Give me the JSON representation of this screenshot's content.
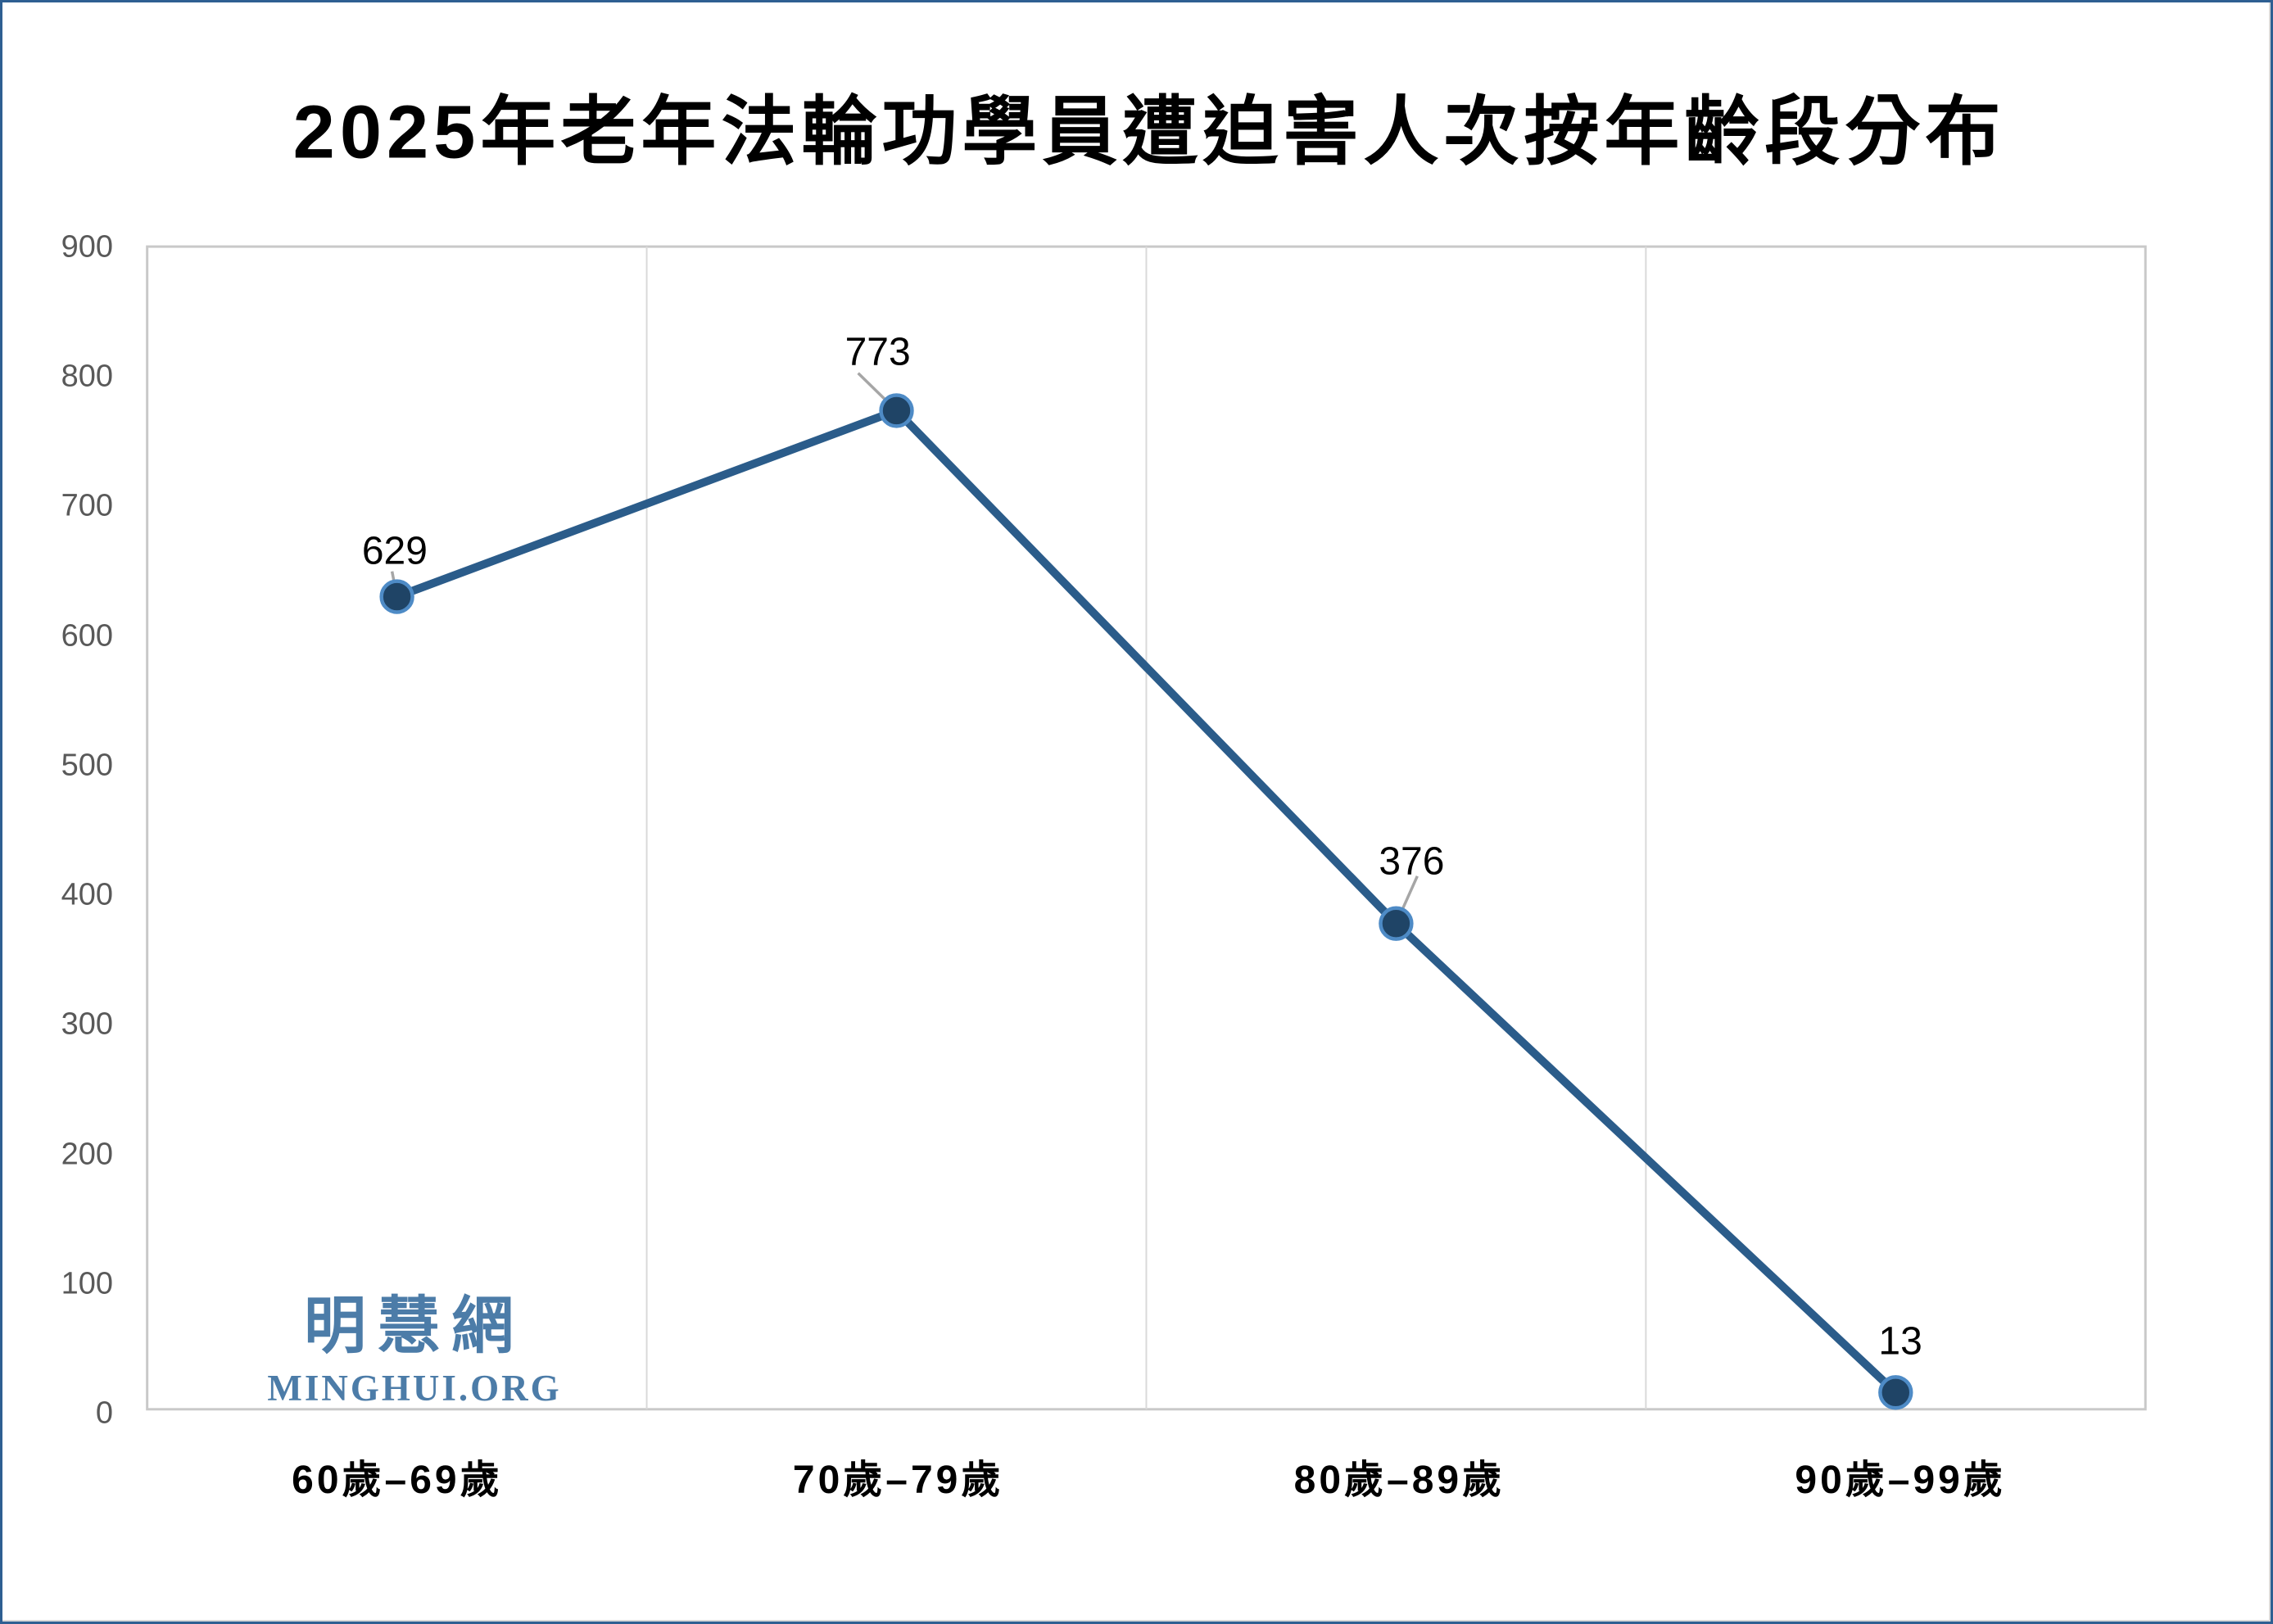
{
  "chart_data": {
    "type": "line",
    "title": "2025年老年法輪功學員遭迫害人次按年齡段分布",
    "categories": [
      "60歲–69歲",
      "70歲–79歲",
      "80歲–89歲",
      "90歲–99歲"
    ],
    "values": [
      629,
      773,
      376,
      13
    ],
    "data_labels": [
      "629",
      "773",
      "376",
      "13"
    ],
    "xlabel": "",
    "ylabel": "",
    "ylim": [
      0,
      900
    ],
    "yticks": [
      0,
      100,
      200,
      300,
      400,
      500,
      600,
      700,
      800,
      900
    ],
    "grid": "vertical-category-boundaries-only",
    "legend_position": "none",
    "marker": "circle"
  },
  "watermark": {
    "cjk": "明慧網",
    "latin": "MINGHUI.ORG"
  },
  "colors": {
    "series_line": "#2B5C8A",
    "marker_fill": "#1F4466",
    "marker_ring": "#4E8BC6",
    "leader_line": "#A6A6A6",
    "gridline": "#D9D9D9",
    "plot_border": "#C9C9C9",
    "ytick_text": "#595959",
    "label_text": "#000000",
    "watermark_text": "#4C7CA8",
    "frame_border": "#2E5F92"
  }
}
